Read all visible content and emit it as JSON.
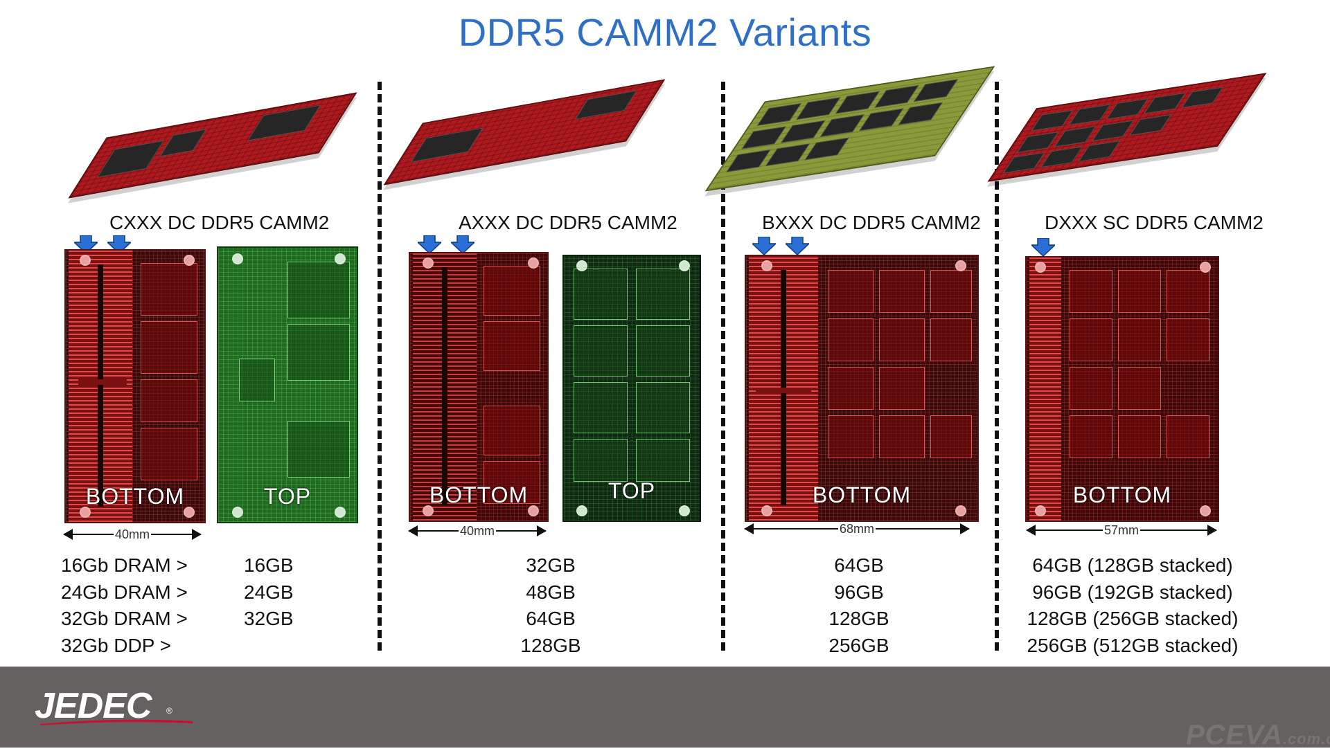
{
  "title": "DDR5 CAMM2 Variants",
  "variants": [
    {
      "label": "CXXX DC DDR5 CAMM2",
      "panels": [
        "BOTTOM",
        "TOP"
      ],
      "dimension": "40mm",
      "dram_types": [
        "16Gb DRAM >",
        "24Gb DRAM >",
        "32Gb DRAM >",
        "32Gb DDP >"
      ],
      "capacities": [
        "16GB",
        "24GB",
        "32GB"
      ]
    },
    {
      "label": "AXXX DC DDR5 CAMM2",
      "panels": [
        "BOTTOM",
        "TOP"
      ],
      "dimension": "40mm",
      "capacities": [
        "32GB",
        "48GB",
        "64GB",
        "128GB"
      ]
    },
    {
      "label": "BXXX DC DDR5 CAMM2",
      "panels": [
        "BOTTOM"
      ],
      "dimension": "68mm",
      "capacities": [
        "64GB",
        "96GB",
        "128GB",
        "256GB"
      ]
    },
    {
      "label": "DXXX SC DDR5 CAMM2",
      "panels": [
        "BOTTOM"
      ],
      "dimension": "57mm",
      "capacities": [
        "64GB (128GB stacked)",
        "96GB (192GB stacked)",
        "128GB (256GB stacked)",
        "256GB (512GB stacked)"
      ]
    }
  ],
  "icons": {
    "connector_marker": "arrow-down-icon"
  },
  "colors": {
    "title": "#2f6fc4",
    "arrow": "#2a6fd6",
    "footer": "#656160",
    "pcb_red": "#b0191e",
    "pcb_green": "#1f6a1f"
  },
  "footer": {
    "logo": "JEDEC",
    "watermark": "PCEVA",
    "watermark_suffix": ".com.cn"
  }
}
